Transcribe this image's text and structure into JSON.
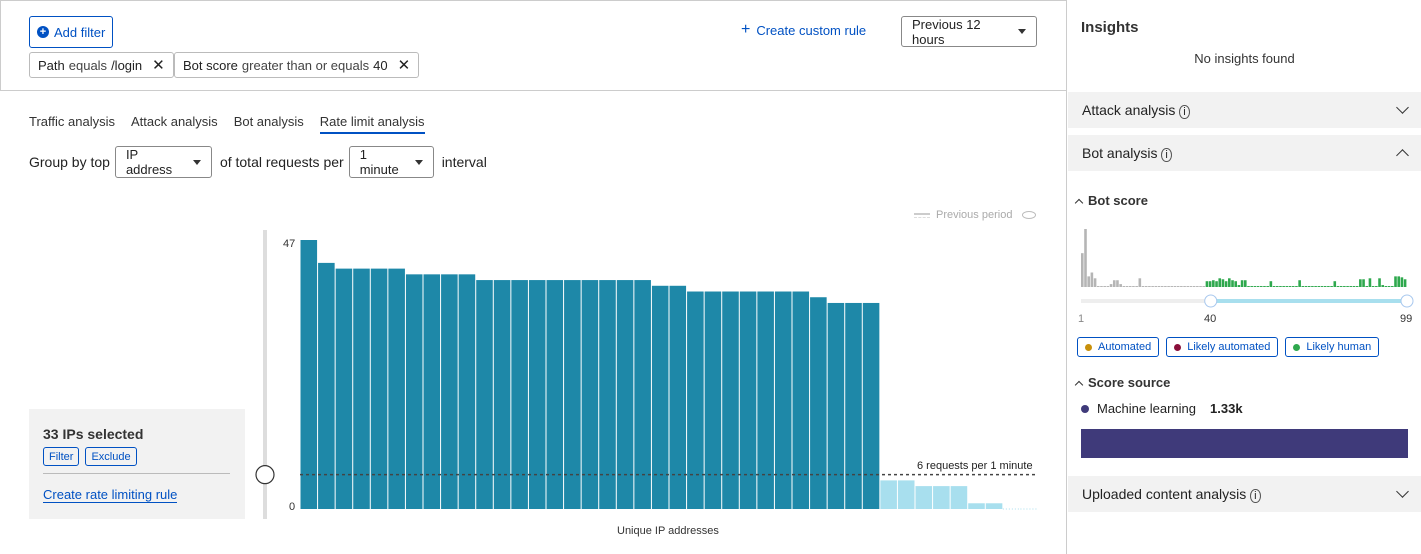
{
  "filters": {
    "add_filter": "Add filter",
    "chips": [
      {
        "field": "Path",
        "op": "equals",
        "value": "/login"
      },
      {
        "field": "Bot score",
        "op": "greater than or equals",
        "value": "40"
      }
    ],
    "create_custom_rule": "Create custom rule",
    "time_range": "Previous 12 hours"
  },
  "tabs": [
    {
      "label": "Traffic analysis"
    },
    {
      "label": "Attack analysis"
    },
    {
      "label": "Bot analysis"
    },
    {
      "label": "Rate limit analysis",
      "active": true
    }
  ],
  "group_by": {
    "prefix": "Group by top",
    "field": "IP address",
    "middle": "of total requests per",
    "interval": "1 minute",
    "suffix": "interval"
  },
  "selection": {
    "title": "33 IPs selected",
    "filter": "Filter",
    "exclude": "Exclude",
    "create_rule": "Create rate limiting rule"
  },
  "chart_data": {
    "type": "bar",
    "xlabel": "Unique IP addresses",
    "ylabel": "",
    "ylim": [
      0,
      47
    ],
    "yticks": [
      "0",
      "47"
    ],
    "legend": "Previous period",
    "threshold": {
      "value": 6,
      "label": "6 requests per 1 minute"
    },
    "values": [
      47,
      43,
      42,
      42,
      42,
      42,
      41,
      41,
      41,
      41,
      40,
      40,
      40,
      40,
      40,
      40,
      40,
      40,
      40,
      40,
      39,
      39,
      38,
      38,
      38,
      38,
      38,
      38,
      38,
      37,
      36,
      36,
      36,
      5,
      5,
      4,
      4,
      4,
      1,
      1,
      0,
      0
    ],
    "selected_count": 33,
    "colors": {
      "selected": "#1e88a8",
      "unselected": "#a8dfee"
    }
  },
  "insights": {
    "title": "Insights",
    "empty": "No insights found",
    "sections": {
      "attack": "Attack analysis",
      "bot": "Bot analysis",
      "uploaded": "Uploaded content analysis"
    },
    "bot_score": {
      "title": "Bot score",
      "range_min": "1",
      "range_low": "40",
      "range_max": "99",
      "histogram": [
        35,
        60,
        11,
        15,
        9,
        1,
        1,
        1,
        1,
        3,
        7,
        7,
        3,
        1,
        1,
        1,
        1,
        1,
        9,
        1,
        1,
        1,
        1,
        1,
        1,
        1,
        1,
        1,
        1,
        1,
        1,
        1,
        1,
        1,
        1,
        1,
        1,
        1,
        1,
        6,
        6,
        7,
        6,
        9,
        8,
        6,
        9,
        7,
        6,
        2,
        7,
        7,
        1,
        1,
        1,
        1,
        1,
        1,
        1,
        6,
        1,
        1,
        1,
        1,
        1,
        1,
        1,
        1,
        7,
        1,
        1,
        1,
        1,
        1,
        1,
        1,
        1,
        1,
        1,
        6,
        1,
        1,
        1,
        1,
        1,
        1,
        1,
        8,
        8,
        1,
        9,
        1,
        1,
        9,
        2,
        1,
        1,
        1,
        11,
        11,
        10,
        8
      ],
      "legend": [
        {
          "label": "Automated",
          "color": "#c8900a"
        },
        {
          "label": "Likely automated",
          "color": "#8a0f3a"
        },
        {
          "label": "Likely human",
          "color": "#2ea84d"
        }
      ]
    },
    "score_source": {
      "title": "Score source",
      "items": [
        {
          "label": "Machine learning",
          "value": "1.33k",
          "color": "#3f3a7a"
        }
      ]
    }
  }
}
